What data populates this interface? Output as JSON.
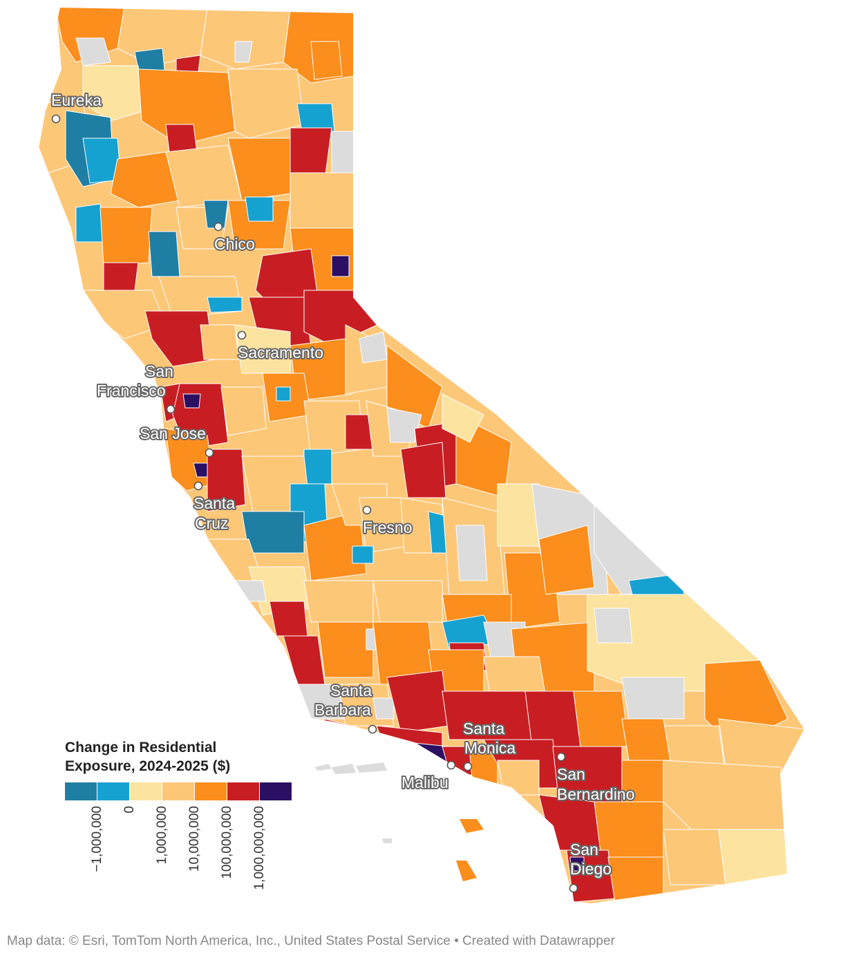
{
  "map": {
    "cities": [
      {
        "name": "Eureka"
      },
      {
        "name": "Chico"
      },
      {
        "name": "Sacramento"
      },
      {
        "name": "San Francisco"
      },
      {
        "name": "San Jose"
      },
      {
        "name": "Santa Cruz"
      },
      {
        "name": "Fresno"
      },
      {
        "name": "Santa Barbara"
      },
      {
        "name": "Santa Monica"
      },
      {
        "name": "Malibu"
      },
      {
        "name": "San Bernardino"
      },
      {
        "name": "San Diego"
      }
    ],
    "legend": {
      "title_line1": "Change in Residential",
      "title_line2": "Exposure, 2024-2025 ($)",
      "bins": [
        {
          "color": "#1f7ea3",
          "value": -1000000
        },
        {
          "color": "#16a2d0",
          "value": 0
        },
        {
          "color": "#fde3a0",
          "value": 1000000
        },
        {
          "color": "#fdc778",
          "value": 10000000
        },
        {
          "color": "#fb8e1c",
          "value": 100000000
        },
        {
          "color": "#c81e23",
          "value": 1000000000
        },
        {
          "color": "#2b0f63"
        }
      ],
      "ticks": [
        "−1,000,000",
        "0",
        "1,000,000",
        "10,000,000",
        "100,000,000",
        "1,000,000,000"
      ]
    },
    "no_data_color": "#dcdcdc"
  },
  "footer": {
    "source": "Map data: © Esri, TomTom North America, Inc., United States Postal Service",
    "credit": "• Created with Datawrapper"
  }
}
